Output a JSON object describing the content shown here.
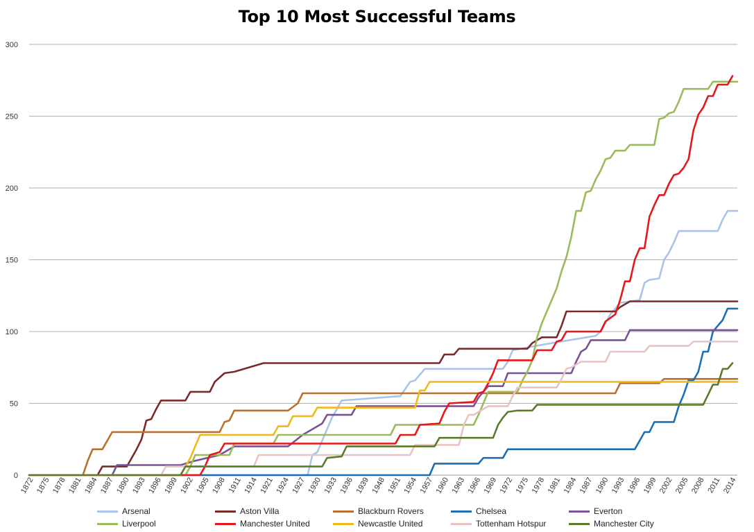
{
  "chart_data": {
    "type": "line",
    "title": "Top 10 Most Successful Teams",
    "xlabel": "",
    "ylabel": "",
    "ylim": [
      0,
      300
    ],
    "xlim": [
      1872,
      2017
    ],
    "yticks": [
      0,
      50,
      100,
      150,
      200,
      250,
      300
    ],
    "xticks": [
      1872,
      1875,
      1878,
      1881,
      1884,
      1887,
      1890,
      1893,
      1896,
      1899,
      1902,
      1905,
      1908,
      1911,
      1914,
      1921,
      1924,
      1927,
      1930,
      1933,
      1936,
      1939,
      1948,
      1951,
      1954,
      1957,
      1960,
      1963,
      1966,
      1969,
      1972,
      1975,
      1978,
      1981,
      1984,
      1987,
      1990,
      1993,
      1996,
      1999,
      2002,
      2005,
      2008,
      2011,
      2014
    ],
    "grid": "horizontal",
    "legend_position": "bottom",
    "series": [
      {
        "name": "Arsenal",
        "color": "#a9c4e8",
        "points": [
          [
            1872,
            0
          ],
          [
            1929,
            0
          ],
          [
            1930,
            14
          ],
          [
            1931,
            16
          ],
          [
            1932,
            24
          ],
          [
            1933,
            32
          ],
          [
            1934,
            40
          ],
          [
            1935,
            46
          ],
          [
            1936,
            52
          ],
          [
            1948,
            55
          ],
          [
            1949,
            60
          ],
          [
            1950,
            65
          ],
          [
            1951,
            66
          ],
          [
            1952,
            70
          ],
          [
            1953,
            74
          ],
          [
            1969,
            74
          ],
          [
            1970,
            79
          ],
          [
            1971,
            87
          ],
          [
            1979,
            92
          ],
          [
            1988,
            97
          ],
          [
            1989,
            100
          ],
          [
            1990,
            106
          ],
          [
            1991,
            112
          ],
          [
            1993,
            120
          ],
          [
            1997,
            122
          ],
          [
            1998,
            134
          ],
          [
            1999,
            136
          ],
          [
            2001,
            137
          ],
          [
            2002,
            150
          ],
          [
            2003,
            155
          ],
          [
            2004,
            162
          ],
          [
            2005,
            170
          ],
          [
            2013,
            170
          ],
          [
            2014,
            178
          ],
          [
            2015,
            184
          ],
          [
            2017,
            184
          ]
        ]
      },
      {
        "name": "Aston Villa",
        "color": "#7b2a2a",
        "points": [
          [
            1872,
            0
          ],
          [
            1886,
            0
          ],
          [
            1887,
            6
          ],
          [
            1892,
            6
          ],
          [
            1893,
            12
          ],
          [
            1894,
            18
          ],
          [
            1895,
            25
          ],
          [
            1896,
            38
          ],
          [
            1897,
            39
          ],
          [
            1898,
            46
          ],
          [
            1899,
            52
          ],
          [
            1904,
            52
          ],
          [
            1905,
            58
          ],
          [
            1909,
            58
          ],
          [
            1910,
            65
          ],
          [
            1912,
            71
          ],
          [
            1914,
            72
          ],
          [
            1920,
            78
          ],
          [
            1956,
            78
          ],
          [
            1957,
            84
          ],
          [
            1959,
            84
          ],
          [
            1960,
            88
          ],
          [
            1974,
            88
          ],
          [
            1975,
            92
          ],
          [
            1977,
            96
          ],
          [
            1980,
            96
          ],
          [
            1981,
            104
          ],
          [
            1982,
            114
          ],
          [
            1992,
            114
          ],
          [
            1993,
            117
          ],
          [
            1995,
            121
          ],
          [
            2017,
            121
          ]
        ]
      },
      {
        "name": "Blackburn Rovers",
        "color": "#b9722e",
        "points": [
          [
            1872,
            0
          ],
          [
            1883,
            0
          ],
          [
            1884,
            10
          ],
          [
            1885,
            18
          ],
          [
            1887,
            18
          ],
          [
            1888,
            24
          ],
          [
            1889,
            30
          ],
          [
            1911,
            30
          ],
          [
            1912,
            37
          ],
          [
            1913,
            38
          ],
          [
            1914,
            45
          ],
          [
            1925,
            45
          ],
          [
            1927,
            50
          ],
          [
            1928,
            57
          ],
          [
            1992,
            57
          ],
          [
            1993,
            64
          ],
          [
            2001,
            64
          ],
          [
            2002,
            67
          ],
          [
            2017,
            67
          ]
        ]
      },
      {
        "name": "Chelsea",
        "color": "#1a6fb5",
        "points": [
          [
            1872,
            0
          ],
          [
            1954,
            0
          ],
          [
            1955,
            8
          ],
          [
            1964,
            8
          ],
          [
            1965,
            12
          ],
          [
            1969,
            12
          ],
          [
            1970,
            18
          ],
          [
            1996,
            18
          ],
          [
            1997,
            24
          ],
          [
            1998,
            30
          ],
          [
            1999,
            30
          ],
          [
            2000,
            37
          ],
          [
            2004,
            37
          ],
          [
            2005,
            48
          ],
          [
            2006,
            56
          ],
          [
            2007,
            66
          ],
          [
            2008,
            66
          ],
          [
            2009,
            72
          ],
          [
            2010,
            86
          ],
          [
            2011,
            86
          ],
          [
            2012,
            100
          ],
          [
            2013,
            104
          ],
          [
            2014,
            108
          ],
          [
            2015,
            116
          ],
          [
            2017,
            116
          ]
        ]
      },
      {
        "name": "Everton",
        "color": "#7a5296",
        "points": [
          [
            1872,
            0
          ],
          [
            1889,
            0
          ],
          [
            1890,
            7
          ],
          [
            1903,
            7
          ],
          [
            1906,
            10
          ],
          [
            1911,
            14
          ],
          [
            1914,
            20
          ],
          [
            1925,
            20
          ],
          [
            1928,
            28
          ],
          [
            1932,
            36
          ],
          [
            1933,
            42
          ],
          [
            1938,
            42
          ],
          [
            1939,
            48
          ],
          [
            1963,
            48
          ],
          [
            1964,
            54
          ],
          [
            1966,
            62
          ],
          [
            1969,
            62
          ],
          [
            1970,
            71
          ],
          [
            1983,
            71
          ],
          [
            1984,
            79
          ],
          [
            1985,
            86
          ],
          [
            1986,
            88
          ],
          [
            1987,
            94
          ],
          [
            1994,
            94
          ],
          [
            1995,
            101
          ],
          [
            2017,
            101
          ]
        ]
      },
      {
        "name": "Liverpool",
        "color": "#9bbb59",
        "points": [
          [
            1872,
            0
          ],
          [
            1904,
            0
          ],
          [
            1905,
            6
          ],
          [
            1906,
            14
          ],
          [
            1913,
            14
          ],
          [
            1914,
            22
          ],
          [
            1922,
            22
          ],
          [
            1923,
            28
          ],
          [
            1946,
            28
          ],
          [
            1947,
            35
          ],
          [
            1963,
            35
          ],
          [
            1964,
            42
          ],
          [
            1965,
            50
          ],
          [
            1966,
            58
          ],
          [
            1972,
            58
          ],
          [
            1973,
            66
          ],
          [
            1974,
            72
          ],
          [
            1975,
            80
          ],
          [
            1976,
            96
          ],
          [
            1977,
            106
          ],
          [
            1978,
            114
          ],
          [
            1979,
            122
          ],
          [
            1980,
            130
          ],
          [
            1981,
            142
          ],
          [
            1982,
            152
          ],
          [
            1983,
            166
          ],
          [
            1984,
            184
          ],
          [
            1985,
            184
          ],
          [
            1986,
            197
          ],
          [
            1987,
            198
          ],
          [
            1988,
            206
          ],
          [
            1989,
            212
          ],
          [
            1990,
            220
          ],
          [
            1991,
            221
          ],
          [
            1992,
            226
          ],
          [
            1994,
            226
          ],
          [
            1995,
            230
          ],
          [
            2000,
            230
          ],
          [
            2001,
            248
          ],
          [
            2002,
            249
          ],
          [
            2003,
            252
          ],
          [
            2004,
            253
          ],
          [
            2005,
            260
          ],
          [
            2006,
            269
          ],
          [
            2011,
            269
          ],
          [
            2012,
            274
          ],
          [
            2017,
            274
          ]
        ]
      },
      {
        "name": "Manchester United",
        "color": "#e8161b",
        "points": [
          [
            1872,
            0
          ],
          [
            1907,
            0
          ],
          [
            1908,
            6
          ],
          [
            1909,
            14
          ],
          [
            1911,
            16
          ],
          [
            1912,
            22
          ],
          [
            1947,
            22
          ],
          [
            1948,
            28
          ],
          [
            1951,
            28
          ],
          [
            1952,
            35
          ],
          [
            1956,
            36
          ],
          [
            1957,
            44
          ],
          [
            1958,
            50
          ],
          [
            1963,
            51
          ],
          [
            1964,
            57
          ],
          [
            1965,
            58
          ],
          [
            1966,
            64
          ],
          [
            1967,
            71
          ],
          [
            1968,
            80
          ],
          [
            1975,
            80
          ],
          [
            1976,
            87
          ],
          [
            1979,
            87
          ],
          [
            1980,
            93
          ],
          [
            1981,
            94
          ],
          [
            1982,
            100
          ],
          [
            1989,
            100
          ],
          [
            1990,
            107
          ],
          [
            1992,
            112
          ],
          [
            1993,
            122
          ],
          [
            1994,
            135
          ],
          [
            1995,
            135
          ],
          [
            1996,
            150
          ],
          [
            1997,
            158
          ],
          [
            1998,
            158
          ],
          [
            1999,
            180
          ],
          [
            2000,
            188
          ],
          [
            2001,
            195
          ],
          [
            2002,
            195
          ],
          [
            2003,
            203
          ],
          [
            2004,
            209
          ],
          [
            2005,
            210
          ],
          [
            2006,
            214
          ],
          [
            2007,
            220
          ],
          [
            2008,
            240
          ],
          [
            2009,
            251
          ],
          [
            2010,
            256
          ],
          [
            2011,
            264
          ],
          [
            2012,
            264
          ],
          [
            2013,
            272
          ],
          [
            2015,
            272
          ],
          [
            2016,
            278
          ]
        ]
      },
      {
        "name": "Newcastle United",
        "color": "#f1b818",
        "points": [
          [
            1872,
            0
          ],
          [
            1903,
            0
          ],
          [
            1904,
            6
          ],
          [
            1905,
            12
          ],
          [
            1906,
            20
          ],
          [
            1907,
            28
          ],
          [
            1922,
            28
          ],
          [
            1923,
            34
          ],
          [
            1925,
            34
          ],
          [
            1926,
            41
          ],
          [
            1930,
            41
          ],
          [
            1931,
            47
          ],
          [
            1951,
            47
          ],
          [
            1952,
            59
          ],
          [
            1953,
            59
          ],
          [
            1954,
            65
          ],
          [
            2017,
            65
          ]
        ]
      },
      {
        "name": "Tottenham Hotspur",
        "color": "#e8c4c4",
        "points": [
          [
            1872,
            0
          ],
          [
            1899,
            0
          ],
          [
            1900,
            6
          ],
          [
            1918,
            6
          ],
          [
            1919,
            14
          ],
          [
            1950,
            14
          ],
          [
            1951,
            21
          ],
          [
            1960,
            21
          ],
          [
            1961,
            35
          ],
          [
            1962,
            42
          ],
          [
            1963,
            42
          ],
          [
            1966,
            48
          ],
          [
            1970,
            48
          ],
          [
            1971,
            55
          ],
          [
            1972,
            61
          ],
          [
            1980,
            61
          ],
          [
            1981,
            67
          ],
          [
            1982,
            74
          ],
          [
            1983,
            75
          ],
          [
            1985,
            79
          ],
          [
            1990,
            79
          ],
          [
            1991,
            86
          ],
          [
            1998,
            86
          ],
          [
            1999,
            90
          ],
          [
            2007,
            90
          ],
          [
            2008,
            93
          ],
          [
            2017,
            93
          ]
        ]
      },
      {
        "name": "Manchester City",
        "color": "#5c7a2a",
        "points": [
          [
            1872,
            0
          ],
          [
            1903,
            0
          ],
          [
            1904,
            6
          ],
          [
            1932,
            6
          ],
          [
            1933,
            12
          ],
          [
            1936,
            13
          ],
          [
            1937,
            20
          ],
          [
            1955,
            20
          ],
          [
            1956,
            26
          ],
          [
            1967,
            26
          ],
          [
            1968,
            35
          ],
          [
            1969,
            40
          ],
          [
            1970,
            44
          ],
          [
            1972,
            45
          ],
          [
            1975,
            45
          ],
          [
            1976,
            49
          ],
          [
            2010,
            49
          ],
          [
            2011,
            56
          ],
          [
            2012,
            63
          ],
          [
            2013,
            63
          ],
          [
            2014,
            74
          ],
          [
            2015,
            74
          ],
          [
            2016,
            78
          ]
        ]
      }
    ]
  }
}
